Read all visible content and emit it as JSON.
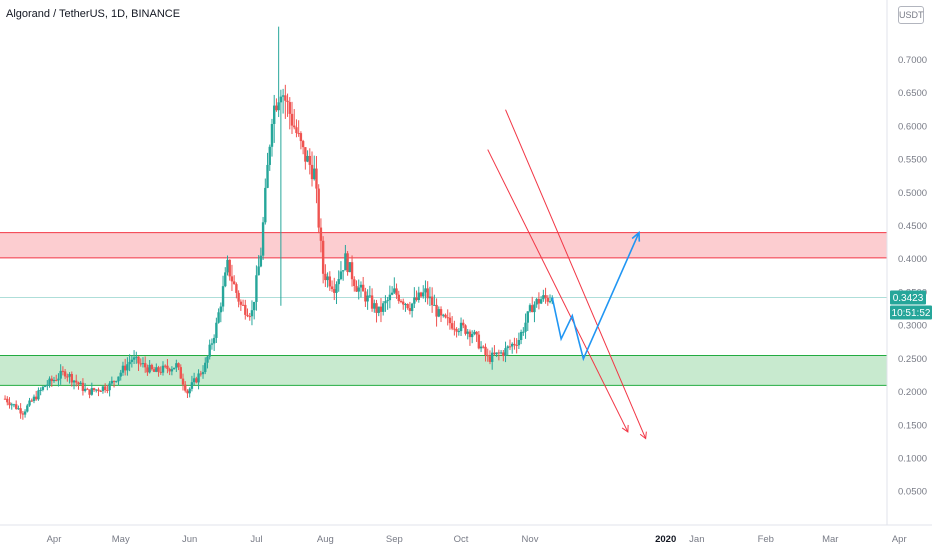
{
  "header": {
    "title": "Algorand / TetherUS, 1D, BINANCE",
    "scale_badge": "USDT"
  },
  "price_axis": {
    "current_price_label": "0.3423",
    "countdown_label": "10:51:52",
    "label_color": "#26a69a"
  },
  "chart_data": {
    "type": "candlestick",
    "symbol": "ALGO/USDT",
    "interval": "1D",
    "exchange": "BINANCE",
    "y_range": [
      0.015,
      0.76
    ],
    "y_ticks": [
      "0.7000",
      "0.6500",
      "0.6000",
      "0.5500",
      "0.5000",
      "0.4500",
      "0.4000",
      "0.3500",
      "0.3000",
      "0.2500",
      "0.2000",
      "0.1500",
      "0.1000",
      "0.0500"
    ],
    "x_ticks": [
      {
        "label": "Apr",
        "date": "2019-04-01"
      },
      {
        "label": "May",
        "date": "2019-05-01"
      },
      {
        "label": "Jun",
        "date": "2019-06-01"
      },
      {
        "label": "Jul",
        "date": "2019-07-01"
      },
      {
        "label": "Aug",
        "date": "2019-08-01"
      },
      {
        "label": "Sep",
        "date": "2019-09-01"
      },
      {
        "label": "Oct",
        "date": "2019-10-01"
      },
      {
        "label": "Nov",
        "date": "2019-11-01"
      },
      {
        "label": "2020",
        "date": "2020-01-01",
        "bold": true
      },
      {
        "label": "Jan",
        "date": "2020-01-15"
      },
      {
        "label": "Feb",
        "date": "2020-02-15"
      },
      {
        "label": "Mar",
        "date": "2020-03-15"
      },
      {
        "label": "Apr",
        "date": "2020-04-15"
      }
    ],
    "price_path": [
      [
        "2019-03-10",
        0.19
      ],
      [
        "2019-03-18",
        0.17
      ],
      [
        "2019-03-28",
        0.21
      ],
      [
        "2019-04-06",
        0.23
      ],
      [
        "2019-04-16",
        0.2
      ],
      [
        "2019-04-26",
        0.21
      ],
      [
        "2019-05-06",
        0.25
      ],
      [
        "2019-05-16",
        0.23
      ],
      [
        "2019-05-26",
        0.24
      ],
      [
        "2019-05-31",
        0.2
      ],
      [
        "2019-06-08",
        0.24
      ],
      [
        "2019-06-13",
        0.3
      ],
      [
        "2019-06-18",
        0.39
      ],
      [
        "2019-06-24",
        0.33
      ],
      [
        "2019-06-29",
        0.32
      ],
      [
        "2019-07-03",
        0.41
      ],
      [
        "2019-07-08",
        0.62
      ],
      [
        "2019-07-12",
        0.66
      ],
      [
        "2019-07-17",
        0.61
      ],
      [
        "2019-07-22",
        0.56
      ],
      [
        "2019-07-27",
        0.53
      ],
      [
        "2019-07-31",
        0.38
      ],
      [
        "2019-08-05",
        0.36
      ],
      [
        "2019-08-10",
        0.4
      ],
      [
        "2019-08-15",
        0.36
      ],
      [
        "2019-08-20",
        0.34
      ],
      [
        "2019-08-25",
        0.32
      ],
      [
        "2019-09-01",
        0.35
      ],
      [
        "2019-09-08",
        0.33
      ],
      [
        "2019-09-15",
        0.35
      ],
      [
        "2019-09-22",
        0.31
      ],
      [
        "2019-09-29",
        0.3
      ],
      [
        "2019-10-06",
        0.29
      ],
      [
        "2019-10-13",
        0.25
      ],
      [
        "2019-10-20",
        0.26
      ],
      [
        "2019-10-27",
        0.28
      ],
      [
        "2019-11-02",
        0.33
      ],
      [
        "2019-11-06",
        0.34
      ],
      [
        "2019-11-11",
        0.3423
      ]
    ],
    "spikes": [
      [
        "2019-07-11",
        0.75
      ],
      [
        "2019-07-12",
        0.33
      ]
    ],
    "zones": [
      {
        "name": "resistance",
        "low": 0.402,
        "high": 0.44,
        "color": "#f23645"
      },
      {
        "name": "support",
        "low": 0.21,
        "high": 0.255,
        "color": "#22ab40"
      }
    ],
    "current_price_line": 0.3423,
    "trend_lines": [
      {
        "from": [
          "2019-10-13",
          0.565
        ],
        "to": [
          "2019-12-15",
          0.14
        ],
        "color": "#f23645"
      },
      {
        "from": [
          "2019-10-21",
          0.625
        ],
        "to": [
          "2019-12-23",
          0.13
        ],
        "color": "#f23645"
      }
    ],
    "projection": {
      "color": "#2196f3",
      "points": [
        [
          "2019-11-11",
          0.3423
        ],
        [
          "2019-11-15",
          0.28
        ],
        [
          "2019-11-20",
          0.315
        ],
        [
          "2019-11-25",
          0.25
        ],
        [
          "2019-12-20",
          0.44
        ]
      ]
    }
  }
}
